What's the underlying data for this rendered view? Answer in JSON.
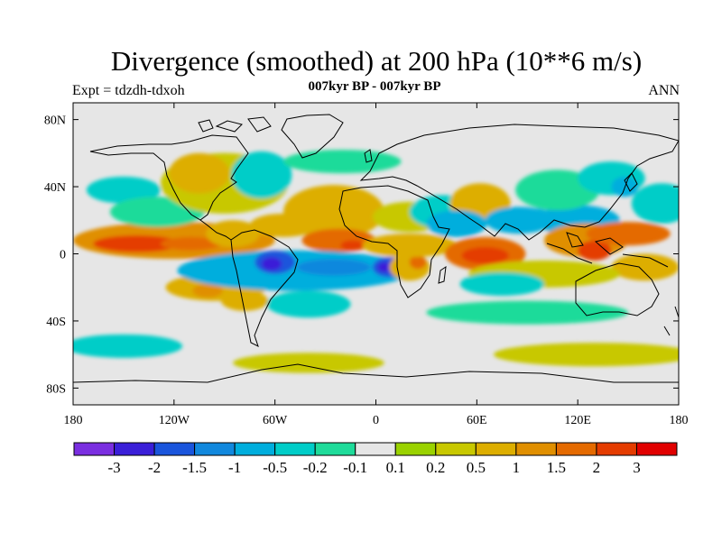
{
  "title": "Divergence (smoothed) at 200 hPa (10**6 m/s)",
  "subtitle": "007kyr BP - 007kyr BP",
  "left_label": "Expt = tdzdh-tdxoh",
  "right_label": "ANN",
  "chart_data": {
    "type": "heatmap",
    "title": "Divergence (smoothed) at 200 hPa (10**6 m/s)",
    "xlabel": "",
    "ylabel": "",
    "xlim": [
      -180,
      180
    ],
    "ylim": [
      -90,
      90
    ],
    "x_ticks": [
      {
        "value": -180,
        "label": "180"
      },
      {
        "value": -120,
        "label": "120W"
      },
      {
        "value": -60,
        "label": "60W"
      },
      {
        "value": 0,
        "label": "0"
      },
      {
        "value": 60,
        "label": "60E"
      },
      {
        "value": 120,
        "label": "120E"
      },
      {
        "value": 180,
        "label": "180"
      }
    ],
    "y_ticks": [
      {
        "value": 80,
        "label": "80N"
      },
      {
        "value": 40,
        "label": "40N"
      },
      {
        "value": 0,
        "label": "0"
      },
      {
        "value": -40,
        "label": "40S"
      },
      {
        "value": -80,
        "label": "80S"
      }
    ],
    "colorbar": {
      "colors": [
        "#7a2ee0",
        "#3a1fd8",
        "#1a55dc",
        "#1188dd",
        "#00aedd",
        "#00cdc8",
        "#1fdb9a",
        "#e6e6e6",
        "#9ad200",
        "#c8c800",
        "#ddae00",
        "#e08f00",
        "#e46a00",
        "#e43c00",
        "#e10000"
      ],
      "labels": [
        "-3",
        "-2",
        "-1.5",
        "-1",
        "-0.5",
        "-0.2",
        "-0.1",
        "0.1",
        "0.2",
        "0.5",
        "1",
        "1.5",
        "2",
        "3"
      ]
    },
    "features": [
      {
        "lon": -120,
        "lat": 8,
        "rx": 60,
        "ry": 11,
        "v": 1.0
      },
      {
        "lon": -142,
        "lat": 6,
        "rx": 26,
        "ry": 5,
        "v": 2.0
      },
      {
        "lon": -110,
        "lat": 6,
        "rx": 18,
        "ry": 4,
        "v": 1.6
      },
      {
        "lon": -85,
        "lat": 12,
        "rx": 16,
        "ry": 8,
        "v": 0.6
      },
      {
        "lon": -95,
        "lat": -20,
        "rx": 30,
        "ry": 8,
        "v": 0.6
      },
      {
        "lon": -100,
        "lat": -22,
        "rx": 9,
        "ry": 4,
        "v": 1.2
      },
      {
        "lon": -150,
        "lat": 38,
        "rx": 22,
        "ry": 8,
        "v": -0.3
      },
      {
        "lon": -130,
        "lat": 25,
        "rx": 28,
        "ry": 9,
        "v": -0.2
      },
      {
        "lon": -90,
        "lat": 42,
        "rx": 38,
        "ry": 18,
        "v": 0.4
      },
      {
        "lon": -105,
        "lat": 48,
        "rx": 18,
        "ry": 12,
        "v": 0.7
      },
      {
        "lon": -68,
        "lat": 47,
        "rx": 18,
        "ry": 14,
        "v": -0.3
      },
      {
        "lon": -25,
        "lat": 25,
        "rx": 30,
        "ry": 16,
        "v": 0.6
      },
      {
        "lon": -22,
        "lat": 8,
        "rx": 22,
        "ry": 7,
        "v": 1.8
      },
      {
        "lon": -14,
        "lat": 5,
        "rx": 7,
        "ry": 3,
        "v": 2.5
      },
      {
        "lon": -55,
        "lat": 17,
        "rx": 20,
        "ry": 7,
        "v": 0.5
      },
      {
        "lon": -48,
        "lat": -10,
        "rx": 70,
        "ry": 12,
        "v": -0.6
      },
      {
        "lon": -60,
        "lat": -5,
        "rx": 12,
        "ry": 7,
        "v": -2.0
      },
      {
        "lon": -62,
        "lat": -6,
        "rx": 6,
        "ry": 4,
        "v": -3.0
      },
      {
        "lon": -25,
        "lat": -8,
        "rx": 22,
        "ry": 5,
        "v": -1.1
      },
      {
        "lon": 8,
        "lat": -8,
        "rx": 10,
        "ry": 6,
        "v": -2.0
      },
      {
        "lon": 5,
        "lat": -8,
        "rx": 4,
        "ry": 3,
        "v": -2.6
      },
      {
        "lon": 20,
        "lat": -8,
        "rx": 12,
        "ry": 8,
        "v": 0.7
      },
      {
        "lon": 25,
        "lat": -5,
        "rx": 5,
        "ry": 4,
        "v": 1.6
      },
      {
        "lon": -40,
        "lat": -30,
        "rx": 25,
        "ry": 8,
        "v": -0.3
      },
      {
        "lon": -78,
        "lat": -28,
        "rx": 14,
        "ry": 6,
        "v": 0.5
      },
      {
        "lon": 20,
        "lat": 22,
        "rx": 22,
        "ry": 9,
        "v": 0.3
      },
      {
        "lon": 20,
        "lat": 5,
        "rx": 28,
        "ry": 7,
        "v": 0.5
      },
      {
        "lon": 40,
        "lat": 25,
        "rx": 20,
        "ry": 10,
        "v": -0.3
      },
      {
        "lon": 62,
        "lat": 30,
        "rx": 18,
        "ry": 12,
        "v": 0.6
      },
      {
        "lon": 48,
        "lat": 18,
        "rx": 18,
        "ry": 8,
        "v": -0.6
      },
      {
        "lon": 65,
        "lat": 0,
        "rx": 24,
        "ry": 10,
        "v": 1.6
      },
      {
        "lon": 65,
        "lat": -1,
        "rx": 14,
        "ry": 5,
        "v": 2.4
      },
      {
        "lon": 85,
        "lat": 20,
        "rx": 20,
        "ry": 8,
        "v": -0.7
      },
      {
        "lon": 95,
        "lat": 22,
        "rx": 10,
        "ry": 5,
        "v": -1.0
      },
      {
        "lon": 120,
        "lat": 20,
        "rx": 25,
        "ry": 9,
        "v": -0.6
      },
      {
        "lon": 108,
        "lat": 38,
        "rx": 25,
        "ry": 12,
        "v": -0.2
      },
      {
        "lon": 125,
        "lat": 8,
        "rx": 25,
        "ry": 10,
        "v": 1.3
      },
      {
        "lon": 130,
        "lat": 2,
        "rx": 10,
        "ry": 6,
        "v": 2.2
      },
      {
        "lon": 150,
        "lat": 12,
        "rx": 25,
        "ry": 7,
        "v": 1.6
      },
      {
        "lon": 160,
        "lat": -8,
        "rx": 20,
        "ry": 8,
        "v": 0.7
      },
      {
        "lon": 140,
        "lat": 45,
        "rx": 20,
        "ry": 10,
        "v": -0.3
      },
      {
        "lon": 148,
        "lat": 40,
        "rx": 8,
        "ry": 6,
        "v": -0.8
      },
      {
        "lon": 100,
        "lat": -12,
        "rx": 45,
        "ry": 8,
        "v": 0.3
      },
      {
        "lon": 75,
        "lat": -18,
        "rx": 25,
        "ry": 7,
        "v": -0.3
      },
      {
        "lon": 90,
        "lat": -35,
        "rx": 60,
        "ry": 7,
        "v": -0.2
      },
      {
        "lon": -40,
        "lat": -65,
        "rx": 45,
        "ry": 6,
        "v": 0.2
      },
      {
        "lon": 130,
        "lat": -60,
        "rx": 60,
        "ry": 7,
        "v": 0.3
      },
      {
        "lon": -150,
        "lat": -55,
        "rx": 35,
        "ry": 7,
        "v": -0.3
      },
      {
        "lon": -20,
        "lat": 55,
        "rx": 35,
        "ry": 7,
        "v": -0.2
      },
      {
        "lon": 170,
        "lat": 30,
        "rx": 18,
        "ry": 12,
        "v": -0.3
      }
    ]
  }
}
